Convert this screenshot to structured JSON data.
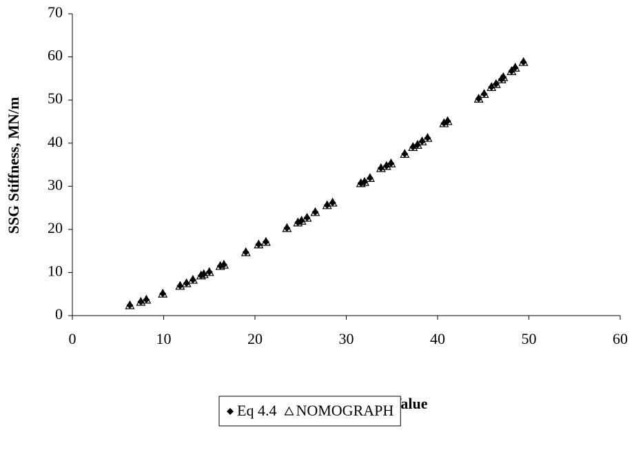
{
  "chart_data": {
    "type": "scatter",
    "x_label": "CIST Clegg Impact Value",
    "y_label": "SSG Stiffness, MN/m",
    "x": [
      6.3,
      7.5,
      8.1,
      9.9,
      11.8,
      12.5,
      13.2,
      14.1,
      14.4,
      15.0,
      16.2,
      16.6,
      19.0,
      20.4,
      21.2,
      23.5,
      24.7,
      25.1,
      25.7,
      26.6,
      27.9,
      28.5,
      31.6,
      32.0,
      32.6,
      33.8,
      34.4,
      34.9,
      36.4,
      37.3,
      37.8,
      38.3,
      38.9,
      40.7,
      41.1,
      44.5,
      45.1,
      45.9,
      46.4,
      47.0,
      47.2,
      48.1,
      48.5,
      49.4
    ],
    "series": [
      {
        "name": "Eq 4.4",
        "color": "#000000",
        "marker": "diamond",
        "values": [
          2.4,
          3.2,
          3.7,
          5.1,
          6.9,
          7.5,
          8.3,
          9.3,
          9.6,
          10.1,
          11.5,
          11.8,
          14.7,
          16.5,
          17.1,
          20.3,
          21.6,
          22.0,
          22.7,
          24.0,
          25.6,
          26.2,
          30.7,
          31.0,
          31.9,
          34.2,
          34.7,
          35.3,
          37.5,
          39.1,
          39.6,
          40.4,
          41.2,
          44.6,
          45.1,
          50.3,
          51.4,
          53.0,
          53.7,
          54.8,
          55.3,
          56.7,
          57.5,
          58.8
        ]
      },
      {
        "name": "NOMOGRAPH",
        "color": "#000000",
        "marker": "triangle-open",
        "values": [
          2.4,
          3.2,
          3.7,
          5.1,
          6.9,
          7.5,
          8.3,
          9.3,
          9.6,
          10.1,
          11.5,
          11.8,
          14.7,
          16.5,
          17.1,
          20.3,
          21.6,
          22.0,
          22.7,
          24.0,
          25.6,
          26.2,
          30.7,
          31.0,
          31.9,
          34.2,
          34.7,
          35.3,
          37.5,
          39.1,
          39.6,
          40.4,
          41.2,
          44.6,
          45.1,
          50.3,
          51.4,
          53.0,
          53.7,
          54.8,
          55.3,
          56.7,
          57.5,
          58.8
        ]
      }
    ],
    "xlim": [
      0,
      60
    ],
    "xticks": [
      0,
      10,
      20,
      30,
      40,
      50,
      60
    ],
    "ylim": [
      0,
      70
    ],
    "yticks": [
      0,
      10,
      20,
      30,
      40,
      50,
      60,
      70
    ],
    "grid": false,
    "legend": "bottom"
  }
}
